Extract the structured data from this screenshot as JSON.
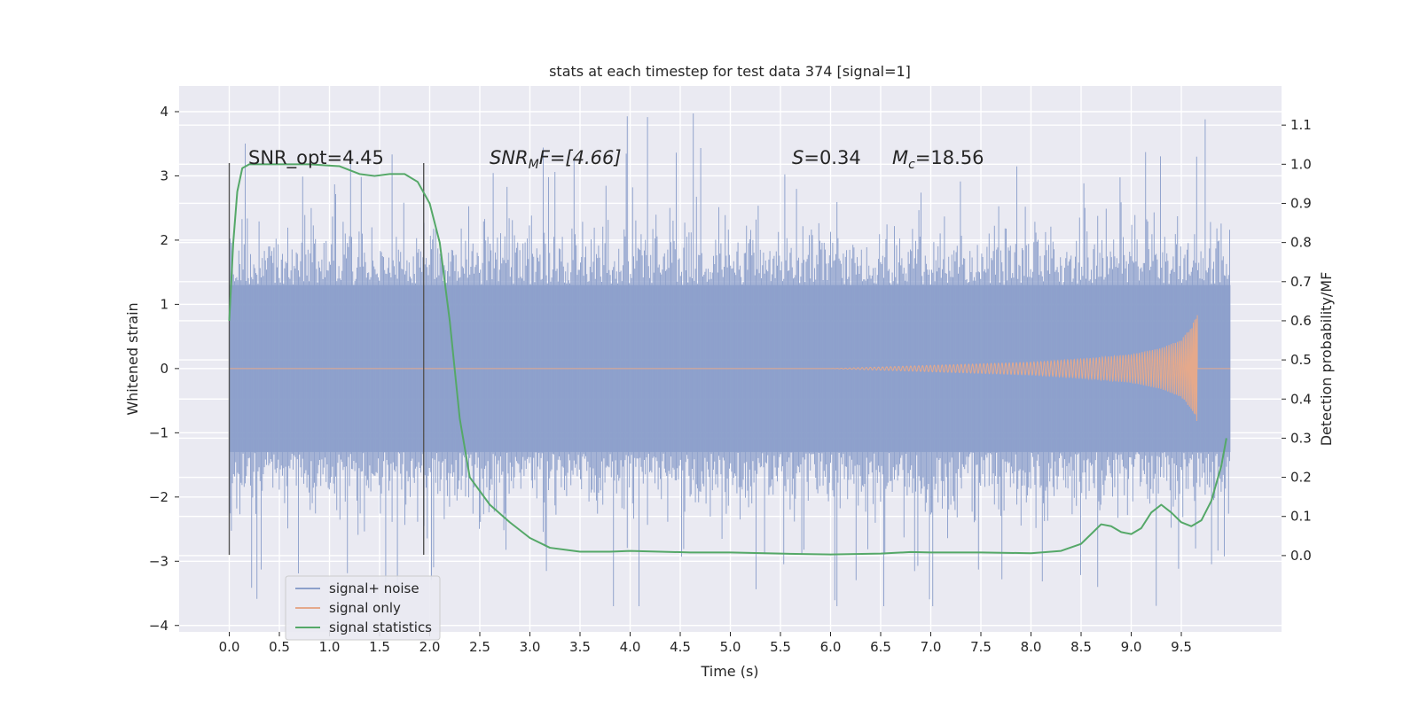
{
  "chart_data": {
    "type": "line",
    "title": "stats at each timestep for test data 374 [signal=1]",
    "xlabel": "Time (s)",
    "ylabel": "Whitened strain",
    "ylabel_right": "Detection probability/MF",
    "xlim": [
      -0.5,
      10.5
    ],
    "ylim": [
      -4.1,
      4.4
    ],
    "ylim_right": [
      -0.195,
      1.2
    ],
    "x_ticks": [
      "0.0",
      "0.5",
      "1.0",
      "1.5",
      "2.0",
      "2.5",
      "3.0",
      "3.5",
      "4.0",
      "4.5",
      "5.0",
      "5.5",
      "6.0",
      "6.5",
      "7.0",
      "7.5",
      "8.0",
      "8.5",
      "9.0",
      "9.5"
    ],
    "x_tick_values": [
      0.0,
      0.5,
      1.0,
      1.5,
      2.0,
      2.5,
      3.0,
      3.5,
      4.0,
      4.5,
      5.0,
      5.5,
      6.0,
      6.5,
      7.0,
      7.5,
      8.0,
      8.5,
      9.0,
      9.5
    ],
    "y_ticks": [
      "4",
      "3",
      "2",
      "1",
      "0",
      "−1",
      "−2",
      "−3",
      "−4"
    ],
    "y_tick_values": [
      4,
      3,
      2,
      1,
      0,
      -1,
      -2,
      -3,
      -4
    ],
    "y_ticks_right": [
      "1.1",
      "1.0",
      "0.9",
      "0.8",
      "0.7",
      "0.6",
      "0.5",
      "0.4",
      "0.3",
      "0.2",
      "0.1",
      "0.0"
    ],
    "y_tick_values_right": [
      1.1,
      1.0,
      0.9,
      0.8,
      0.7,
      0.6,
      0.5,
      0.4,
      0.3,
      0.2,
      0.1,
      0.0
    ],
    "grid": true,
    "legend_position": "lower-left",
    "annotations": {
      "snr_opt": "SNR_opt=4.45",
      "snr_mf_main": "SNR",
      "snr_mf_sub": "M",
      "snr_mf_rest": "F=[4.66]",
      "s_main": "S",
      "s_rest": "=0.34",
      "mc_main": "M",
      "mc_sub": "c",
      "mc_rest": "=18.56"
    },
    "vertical_markers": [
      {
        "x": 0.0,
        "y_range": [
          -2.9,
          3.2
        ]
      },
      {
        "x": 1.94,
        "y_range": [
          -2.9,
          3.2
        ]
      }
    ],
    "series": [
      {
        "name": "signal+ noise",
        "color": "#8da0cb",
        "axis": "left",
        "x_range": [
          0.0,
          9.99
        ],
        "core_amplitude": 1.3,
        "typical_max": 2.4,
        "peak_max": 4.05,
        "peak_min": -3.7
      },
      {
        "name": "signal only",
        "color": "#e5a98b",
        "axis": "left",
        "x_range": [
          0.0,
          9.66
        ],
        "envelope": [
          [
            6.0,
            0.0
          ],
          [
            7.0,
            0.05
          ],
          [
            8.0,
            0.1
          ],
          [
            8.5,
            0.15
          ],
          [
            9.0,
            0.22
          ],
          [
            9.3,
            0.32
          ],
          [
            9.5,
            0.45
          ],
          [
            9.6,
            0.65
          ],
          [
            9.66,
            0.85
          ]
        ]
      },
      {
        "name": "signal statistics",
        "color": "#55a868",
        "axis": "right",
        "points": [
          [
            0.0,
            0.6
          ],
          [
            0.04,
            0.8
          ],
          [
            0.08,
            0.93
          ],
          [
            0.13,
            0.99
          ],
          [
            0.2,
            1.0
          ],
          [
            0.4,
            1.0
          ],
          [
            0.8,
            1.0
          ],
          [
            1.1,
            0.995
          ],
          [
            1.3,
            0.975
          ],
          [
            1.45,
            0.97
          ],
          [
            1.6,
            0.975
          ],
          [
            1.75,
            0.975
          ],
          [
            1.88,
            0.955
          ],
          [
            2.0,
            0.9
          ],
          [
            2.1,
            0.8
          ],
          [
            2.2,
            0.6
          ],
          [
            2.3,
            0.35
          ],
          [
            2.4,
            0.2
          ],
          [
            2.6,
            0.13
          ],
          [
            2.8,
            0.085
          ],
          [
            3.0,
            0.045
          ],
          [
            3.2,
            0.02
          ],
          [
            3.5,
            0.01
          ],
          [
            3.8,
            0.01
          ],
          [
            4.0,
            0.012
          ],
          [
            4.3,
            0.01
          ],
          [
            4.6,
            0.008
          ],
          [
            5.0,
            0.008
          ],
          [
            5.5,
            0.005
          ],
          [
            6.0,
            0.003
          ],
          [
            6.5,
            0.005
          ],
          [
            6.8,
            0.009
          ],
          [
            7.0,
            0.008
          ],
          [
            7.5,
            0.008
          ],
          [
            8.0,
            0.006
          ],
          [
            8.3,
            0.012
          ],
          [
            8.5,
            0.03
          ],
          [
            8.6,
            0.055
          ],
          [
            8.7,
            0.08
          ],
          [
            8.8,
            0.075
          ],
          [
            8.9,
            0.06
          ],
          [
            9.0,
            0.055
          ],
          [
            9.1,
            0.07
          ],
          [
            9.2,
            0.11
          ],
          [
            9.3,
            0.13
          ],
          [
            9.4,
            0.11
          ],
          [
            9.5,
            0.085
          ],
          [
            9.6,
            0.075
          ],
          [
            9.7,
            0.09
          ],
          [
            9.8,
            0.14
          ],
          [
            9.9,
            0.23
          ],
          [
            9.95,
            0.3
          ]
        ]
      }
    ]
  }
}
